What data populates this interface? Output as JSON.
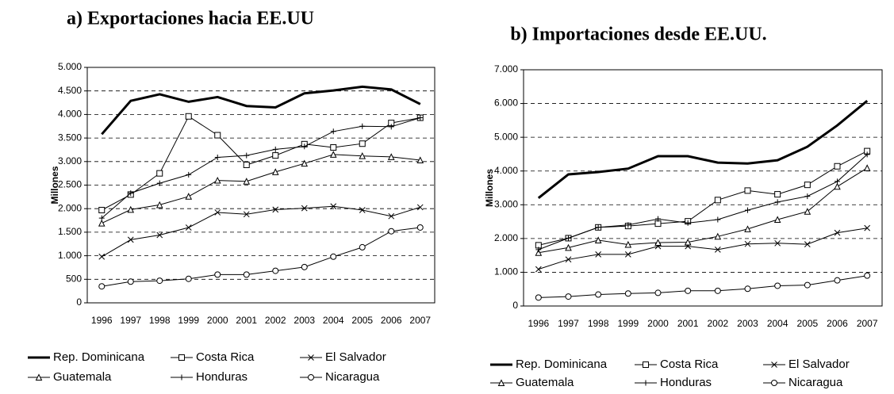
{
  "chart_data": [
    {
      "type": "line",
      "title": "a) Exportaciones hacia EE.UU",
      "ylabel": "Millones",
      "categories": [
        "1996",
        "1997",
        "1998",
        "1999",
        "2000",
        "2001",
        "2002",
        "2003",
        "2004",
        "2005",
        "2006",
        "2007"
      ],
      "ylim": [
        0,
        5000
      ],
      "yticks": [
        0,
        500,
        {
          "value": 1000,
          "label": "1.000"
        },
        {
          "value": 1500,
          "label": "1.500"
        },
        {
          "value": 2000,
          "label": "2.000"
        },
        {
          "value": 2500,
          "label": "2.500"
        },
        {
          "value": 3000,
          "label": "3.000"
        },
        {
          "value": 3500,
          "label": "3.500"
        },
        {
          "value": 4000,
          "label": "4.000"
        },
        {
          "value": 4500,
          "label": "4.500"
        },
        {
          "value": 5000,
          "label": "5.000"
        }
      ],
      "grid": true,
      "series": [
        {
          "name": "Rep. Dominicana",
          "color": "#000000",
          "marker": "none",
          "values": [
            3580,
            4290,
            4430,
            4270,
            4370,
            4180,
            4150,
            4450,
            4510,
            4590,
            4530,
            4220
          ]
        },
        {
          "name": "Costa Rica",
          "color": "#000000",
          "marker": "square",
          "values": [
            1970,
            2300,
            2750,
            3960,
            3560,
            2930,
            3130,
            3370,
            3300,
            3380,
            3820,
            3930
          ]
        },
        {
          "name": "El Salvador",
          "color": "#000000",
          "marker": "x",
          "values": [
            980,
            1340,
            1440,
            1600,
            1920,
            1880,
            1980,
            2010,
            2050,
            1970,
            1840,
            2030
          ]
        },
        {
          "name": "Guatemala",
          "color": "#000000",
          "marker": "triangle",
          "values": [
            1690,
            1980,
            2080,
            2260,
            2600,
            2580,
            2780,
            2960,
            3150,
            3120,
            3100,
            3030
          ]
        },
        {
          "name": "Honduras",
          "color": "#000000",
          "marker": "plus",
          "values": [
            1800,
            2330,
            2540,
            2720,
            3090,
            3130,
            3260,
            3320,
            3640,
            3750,
            3740,
            3930
          ]
        },
        {
          "name": "Nicaragua",
          "color": "#000000",
          "marker": "circle",
          "values": [
            350,
            450,
            470,
            510,
            600,
            600,
            680,
            760,
            980,
            1180,
            1520,
            1600
          ]
        }
      ]
    },
    {
      "type": "line",
      "title": "b) Importaciones desde EE.UU.",
      "ylabel": "Millones",
      "categories": [
        "1996",
        "1997",
        "1998",
        "1999",
        "2000",
        "2001",
        "2002",
        "2003",
        "2004",
        "2005",
        "2006",
        "2007"
      ],
      "ylim": [
        0,
        7000
      ],
      "yticks": [
        0,
        {
          "value": 1000,
          "label": "1.000"
        },
        {
          "value": 2000,
          "label": "2.000"
        },
        {
          "value": 3000,
          "label": "3.000"
        },
        {
          "value": 4000,
          "label": "4.000"
        },
        {
          "value": 5000,
          "label": "5.000"
        },
        {
          "value": 6000,
          "label": "6.000"
        },
        {
          "value": 7000,
          "label": "7.000"
        }
      ],
      "grid": true,
      "series": [
        {
          "name": "Rep. Dominicana",
          "color": "#000000",
          "marker": "none",
          "values": [
            3200,
            3900,
            3970,
            4070,
            4440,
            4440,
            4250,
            4220,
            4320,
            4720,
            5350,
            6080
          ]
        },
        {
          "name": "Costa Rica",
          "color": "#000000",
          "marker": "square",
          "values": [
            1800,
            2010,
            2330,
            2370,
            2440,
            2510,
            3140,
            3420,
            3310,
            3590,
            4140,
            4590
          ]
        },
        {
          "name": "El Salvador",
          "color": "#000000",
          "marker": "x",
          "values": [
            1090,
            1380,
            1530,
            1530,
            1770,
            1770,
            1670,
            1840,
            1860,
            1830,
            2170,
            2310
          ]
        },
        {
          "name": "Guatemala",
          "color": "#000000",
          "marker": "triangle",
          "values": [
            1580,
            1730,
            1950,
            1820,
            1880,
            1890,
            2060,
            2280,
            2560,
            2800,
            3540,
            4090
          ]
        },
        {
          "name": "Honduras",
          "color": "#000000",
          "marker": "plus",
          "values": [
            1670,
            2010,
            2330,
            2400,
            2580,
            2460,
            2560,
            2840,
            3080,
            3250,
            3690,
            4490
          ]
        },
        {
          "name": "Nicaragua",
          "color": "#000000",
          "marker": "circle",
          "values": [
            250,
            280,
            340,
            370,
            390,
            450,
            450,
            510,
            600,
            620,
            760,
            900
          ]
        }
      ]
    }
  ]
}
